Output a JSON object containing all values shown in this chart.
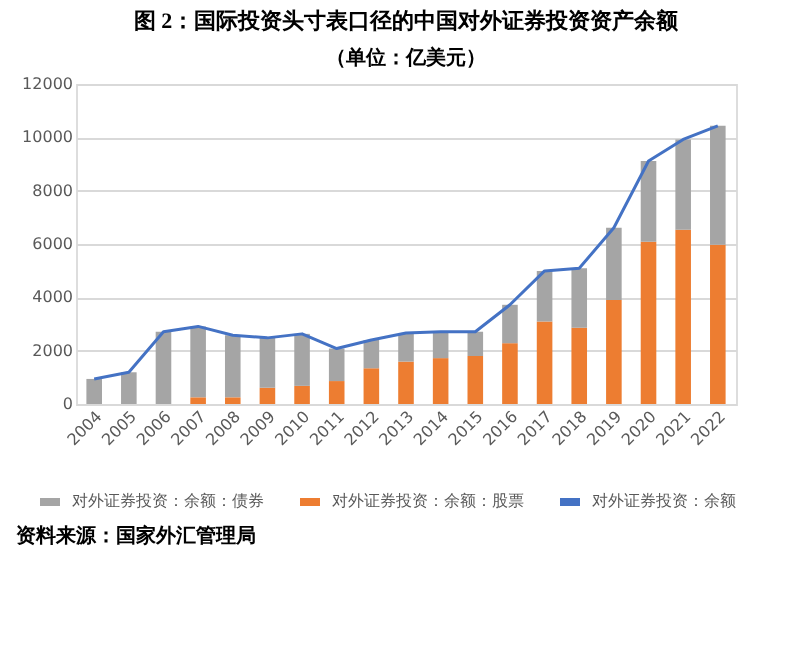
{
  "chart_data": {
    "type": "bar",
    "title": "图 2：国际投资头寸表口径的中国对外证券投资资产余额",
    "subtitle": "（单位：亿美元）",
    "categories": [
      "2004",
      "2005",
      "2006",
      "2007",
      "2008",
      "2009",
      "2010",
      "2011",
      "2012",
      "2013",
      "2014",
      "2015",
      "2016",
      "2017",
      "2018",
      "2019",
      "2020",
      "2021",
      "2022"
    ],
    "stacked": true,
    "series": [
      {
        "name": "对外证券投资：余额：股票",
        "color": "#ed7d31",
        "values": [
          0,
          0,
          0,
          250,
          250,
          610,
          680,
          860,
          1340,
          1590,
          1720,
          1800,
          2280,
          3090,
          2860,
          3900,
          6080,
          6530,
          5970
        ]
      },
      {
        "name": "对外证券投资：余额：债券",
        "color": "#a5a5a5",
        "values": [
          940,
          1190,
          2710,
          2660,
          2330,
          1870,
          1950,
          1220,
          1060,
          1070,
          990,
          910,
          1440,
          1900,
          2230,
          2710,
          3030,
          3390,
          4460
        ]
      },
      {
        "name": "对外证券投资：余额",
        "color": "#4472c4",
        "type": "line",
        "values": [
          940,
          1190,
          2710,
          2910,
          2580,
          2480,
          2630,
          2080,
          2400,
          2660,
          2710,
          2710,
          3720,
          4990,
          5090,
          6610,
          9110,
          9920,
          10430
        ]
      }
    ],
    "ylim": [
      0,
      12000
    ],
    "yticks": [
      0,
      2000,
      4000,
      6000,
      8000,
      10000,
      12000
    ],
    "grid": "y",
    "legend": "bottom",
    "annotations": [
      "资料来源：国家外汇管理局"
    ]
  }
}
